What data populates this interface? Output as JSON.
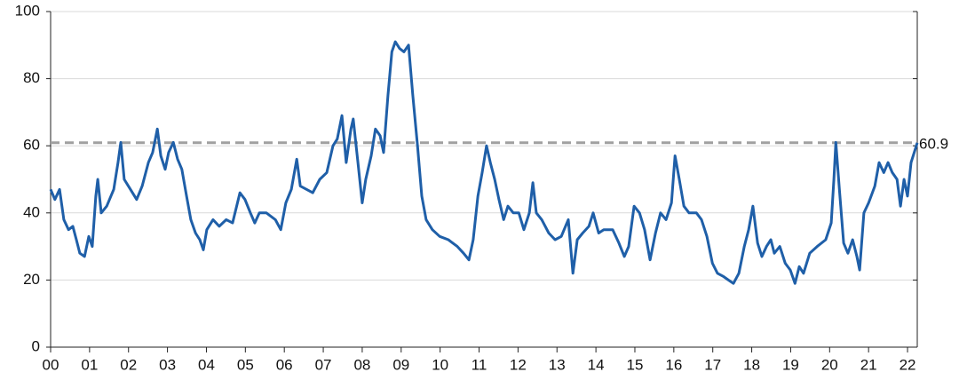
{
  "chart_data": {
    "type": "line",
    "x": [
      2000.0,
      2000.11,
      2000.23,
      2000.34,
      2000.46,
      2000.57,
      2000.66,
      2000.75,
      2000.87,
      2000.98,
      2001.07,
      2001.16,
      2001.21,
      2001.3,
      2001.44,
      2001.62,
      2001.73,
      2001.8,
      2001.89,
      2002.05,
      2002.21,
      2002.35,
      2002.51,
      2002.62,
      2002.74,
      2002.83,
      2002.94,
      2003.03,
      2003.15,
      2003.26,
      2003.37,
      2003.49,
      2003.6,
      2003.72,
      2003.83,
      2003.92,
      2004.01,
      2004.17,
      2004.33,
      2004.51,
      2004.67,
      2004.86,
      2004.99,
      2005.13,
      2005.24,
      2005.36,
      2005.54,
      2005.77,
      2005.91,
      2006.04,
      2006.18,
      2006.32,
      2006.41,
      2006.57,
      2006.73,
      2006.91,
      2007.09,
      2007.25,
      2007.36,
      2007.48,
      2007.59,
      2007.71,
      2007.77,
      2007.89,
      2008.0,
      2008.09,
      2008.23,
      2008.34,
      2008.46,
      2008.55,
      2008.66,
      2008.76,
      2008.85,
      2008.96,
      2009.07,
      2009.19,
      2009.3,
      2009.42,
      2009.53,
      2009.64,
      2009.8,
      2009.99,
      2010.21,
      2010.44,
      2010.6,
      2010.74,
      2010.85,
      2010.97,
      2011.08,
      2011.19,
      2011.29,
      2011.4,
      2011.51,
      2011.63,
      2011.74,
      2011.88,
      2012.02,
      2012.15,
      2012.29,
      2012.38,
      2012.47,
      2012.61,
      2012.79,
      2012.95,
      2013.11,
      2013.29,
      2013.41,
      2013.52,
      2013.66,
      2013.82,
      2013.93,
      2014.07,
      2014.2,
      2014.43,
      2014.59,
      2014.73,
      2014.84,
      2014.98,
      2015.12,
      2015.25,
      2015.39,
      2015.53,
      2015.66,
      2015.8,
      2015.94,
      2016.03,
      2016.14,
      2016.26,
      2016.39,
      2016.58,
      2016.71,
      2016.85,
      2016.99,
      2017.12,
      2017.28,
      2017.4,
      2017.53,
      2017.67,
      2017.81,
      2017.92,
      2018.03,
      2018.15,
      2018.26,
      2018.38,
      2018.49,
      2018.58,
      2018.72,
      2018.86,
      2018.99,
      2019.11,
      2019.22,
      2019.33,
      2019.49,
      2019.68,
      2019.9,
      2020.04,
      2020.11,
      2020.16,
      2020.25,
      2020.36,
      2020.47,
      2020.59,
      2020.7,
      2020.77,
      2020.88,
      2021.0,
      2021.16,
      2021.27,
      2021.39,
      2021.5,
      2021.61,
      2021.73,
      2021.82,
      2021.91,
      2022.0,
      2022.09,
      2022.25
    ],
    "series": [
      {
        "color": "#1f5fa8",
        "values": [
          47,
          44,
          47,
          38,
          35,
          36,
          32,
          28,
          27,
          33,
          30,
          45,
          50,
          40,
          42,
          47,
          55,
          61,
          50,
          47,
          44,
          48,
          55,
          58,
          65,
          57,
          53,
          58,
          61,
          56,
          53,
          45,
          38,
          34,
          32,
          29,
          35,
          38,
          36,
          38,
          37,
          46,
          44,
          40,
          37,
          40,
          40,
          38,
          35,
          43,
          47,
          56,
          48,
          47,
          46,
          50,
          52,
          60,
          62,
          69,
          55,
          65,
          68,
          55,
          43,
          50,
          57,
          65,
          63,
          58,
          75,
          88,
          91,
          89,
          88,
          90,
          75,
          60,
          45,
          38,
          35,
          33,
          32,
          30,
          28,
          26,
          32,
          45,
          52,
          60,
          55,
          50,
          44,
          38,
          42,
          40,
          40,
          35,
          40,
          49,
          40,
          38,
          34,
          32,
          33,
          38,
          22,
          32,
          34,
          36,
          40,
          34,
          35,
          35,
          31,
          27,
          30,
          42,
          40,
          35,
          26,
          34,
          40,
          38,
          43,
          57,
          50,
          42,
          40,
          40,
          38,
          33,
          25,
          22,
          21,
          20,
          19,
          22,
          30,
          35,
          42,
          31,
          27,
          30,
          32,
          28,
          30,
          25,
          23,
          19,
          24,
          22,
          28,
          30,
          32,
          37,
          50,
          61,
          47,
          31,
          28,
          32,
          27,
          23,
          40,
          43,
          48,
          55,
          52,
          55,
          52,
          50,
          42,
          50,
          45,
          55,
          60.9
        ]
      }
    ],
    "reference_line": {
      "value": 60.9,
      "color": "#a0a0a0"
    },
    "xlim": [
      2000,
      2022.25
    ],
    "xticks": [
      {
        "value": 2000,
        "label": "00"
      },
      {
        "value": 2001,
        "label": "01"
      },
      {
        "value": 2002,
        "label": "02"
      },
      {
        "value": 2003,
        "label": "03"
      },
      {
        "value": 2004,
        "label": "04"
      },
      {
        "value": 2005,
        "label": "05"
      },
      {
        "value": 2006,
        "label": "06"
      },
      {
        "value": 2007,
        "label": "07"
      },
      {
        "value": 2008,
        "label": "08"
      },
      {
        "value": 2009,
        "label": "09"
      },
      {
        "value": 2010,
        "label": "10"
      },
      {
        "value": 2011,
        "label": "11"
      },
      {
        "value": 2012,
        "label": "12"
      },
      {
        "value": 2013,
        "label": "13"
      },
      {
        "value": 2014,
        "label": "14"
      },
      {
        "value": 2015,
        "label": "15"
      },
      {
        "value": 2016,
        "label": "16"
      },
      {
        "value": 2017,
        "label": "17"
      },
      {
        "value": 2018,
        "label": "18"
      },
      {
        "value": 2019,
        "label": "19"
      },
      {
        "value": 2020,
        "label": "20"
      },
      {
        "value": 2021,
        "label": "21"
      },
      {
        "value": 2022,
        "label": "22"
      }
    ],
    "ylim": [
      0,
      100
    ],
    "yticks": [
      0,
      20,
      40,
      60,
      80,
      100
    ],
    "grid": true
  }
}
